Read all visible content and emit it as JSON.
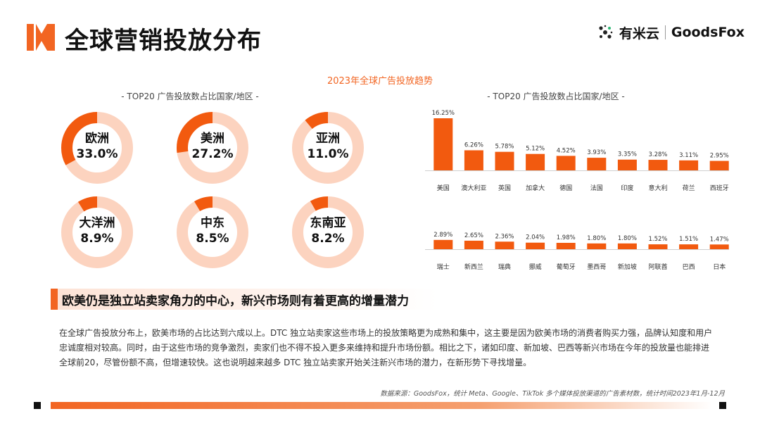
{
  "header": {
    "title": "全球营销投放分布",
    "brand_cn": "有米云",
    "brand_en": "GoodsFox"
  },
  "chart_title": "2023年全球广告投放趋势",
  "left_subtitle": "- TOP20 广告投放数占比国家/地区 -",
  "right_subtitle": "- TOP20 广告投放数占比国家/地区 -",
  "regions": [
    {
      "name": "欧洲",
      "value": 33.0,
      "label": "33.0%"
    },
    {
      "name": "美洲",
      "value": 27.2,
      "label": "27.2%"
    },
    {
      "name": "亚洲",
      "value": 11.0,
      "label": "11.0%"
    },
    {
      "name": "大洋洲",
      "value": 8.9,
      "label": "8.9%"
    },
    {
      "name": "中东",
      "value": 8.5,
      "label": "8.5%"
    },
    {
      "name": "东南亚",
      "value": 8.2,
      "label": "8.2%"
    }
  ],
  "chart_data": {
    "type": "bar",
    "title": "",
    "rows": [
      {
        "categories": [
          "美国",
          "澳大利亚",
          "英国",
          "加拿大",
          "德国",
          "法国",
          "印度",
          "意大利",
          "荷兰",
          "西班牙"
        ],
        "values": [
          16.25,
          6.26,
          5.78,
          5.12,
          4.52,
          3.93,
          3.35,
          3.28,
          3.11,
          2.95
        ],
        "labels": [
          "16.25%",
          "6.26%",
          "5.78%",
          "5.12%",
          "4.52%",
          "3.93%",
          "3.35%",
          "3.28%",
          "3.11%",
          "2.95%"
        ]
      },
      {
        "categories": [
          "瑞士",
          "新西兰",
          "瑞典",
          "挪威",
          "葡萄牙",
          "墨西哥",
          "新加坡",
          "阿联酋",
          "巴西",
          "日本"
        ],
        "values": [
          2.89,
          2.65,
          2.36,
          2.04,
          1.98,
          1.8,
          1.8,
          1.52,
          1.51,
          1.47
        ],
        "labels": [
          "2.89%",
          "2.65%",
          "2.36%",
          "2.04%",
          "1.98%",
          "1.80%",
          "1.80%",
          "1.52%",
          "1.51%",
          "1.47%"
        ]
      }
    ],
    "ylim": [
      0,
      16.25
    ],
    "colors": {
      "bar": "#f25a0f",
      "donut_fill": "#f25a0f",
      "donut_track": "#fcd3bf"
    }
  },
  "headline": "欧美仍是独立站卖家角力的中心，新兴市场则有着更高的增量潜力",
  "body": "在全球广告投放分布上，欧美市场的占比达到六成以上。DTC 独立站卖家这些市场上的投放策略更为成熟和集中，这主要是因为欧美市场的消费者购买力强，品牌认知度和用户忠诚度相对较高。同时，由于这些市场的竞争激烈，卖家们也不得不投入更多来维持和提升市场份额。相比之下，诸如印度、新加坡、巴西等新兴市场在今年的投放量也能排进全球前20，尽管份额不高，但增速较快。这也说明越来越多 DTC 独立站卖家开始关注新兴市场的潜力，在新形势下寻找增量。",
  "source": "数据来源：GoodsFox，统计 Meta、Google、TikTok 多个媒体投放渠道的广告素材数，统计时间2023年1月-12月"
}
